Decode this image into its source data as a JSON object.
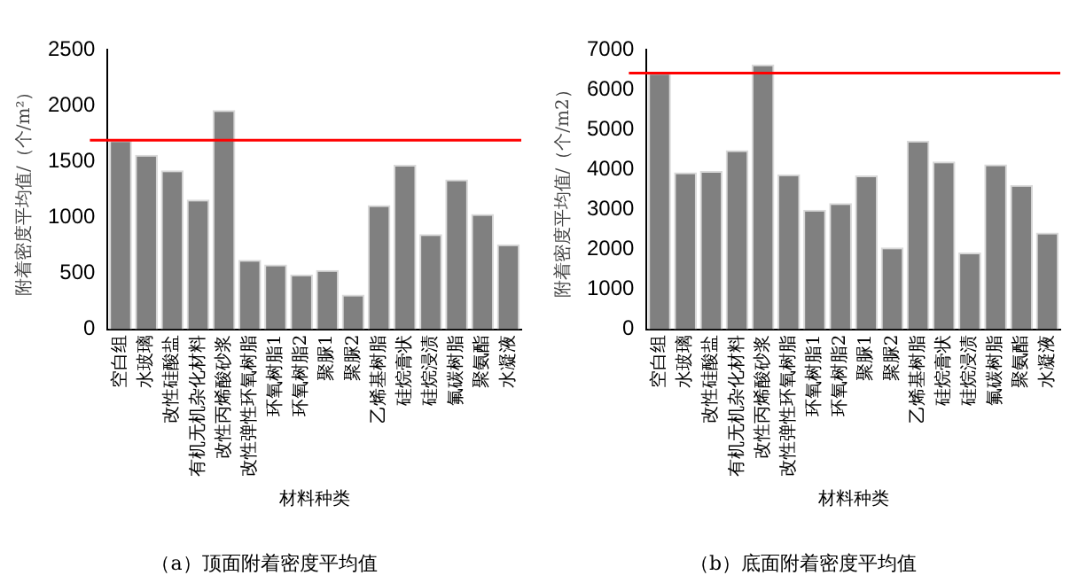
{
  "chart_data": [
    {
      "type": "bar",
      "title": "（a）顶面附着密度平均值",
      "xlabel": "材料种类",
      "ylabel": "附着密度平均值/（个/m²）",
      "categories": [
        "空白组",
        "水玻璃",
        "改性硅酸盐",
        "有机无机杂化材料",
        "改性丙烯酸砂浆",
        "改性弹性环氧树脂",
        "环氧树脂1",
        "环氧树脂2",
        "聚脲1",
        "聚脲2",
        "乙烯基树脂",
        "硅烷膏状",
        "硅烷浸渍",
        "氟碳树脂",
        "聚氨酯",
        "水凝液"
      ],
      "values": [
        1690,
        1560,
        1420,
        1160,
        1960,
        620,
        580,
        490,
        530,
        310,
        1110,
        1470,
        850,
        1340,
        1030,
        760
      ],
      "color": "#808080",
      "ylim": [
        0,
        2500
      ],
      "yticks": [
        0,
        500,
        1000,
        1500,
        2000,
        2500
      ],
      "grid": false,
      "legend": false,
      "ref_lines": [
        {
          "axis": "y",
          "value": 1690,
          "color": "#ff0000"
        }
      ]
    },
    {
      "type": "bar",
      "title": "（b）底面附着密度平均值",
      "xlabel": "材料种类",
      "ylabel": "附着密度平均值/（个/m2）",
      "categories": [
        "空白组",
        "水玻璃",
        "改性硅酸盐",
        "有机无机杂化材料",
        "改性丙烯酸砂浆",
        "改性弹性环氧树脂",
        "环氧树脂1",
        "环氧树脂2",
        "聚脲1",
        "聚脲2",
        "乙烯基树脂",
        "硅烷膏状",
        "硅烷浸渍",
        "氟碳树脂",
        "聚氨酯",
        "水凝液"
      ],
      "values": [
        6420,
        3930,
        3960,
        4480,
        6630,
        3880,
        2990,
        3160,
        3850,
        2050,
        4720,
        4200,
        1920,
        4130,
        3610,
        2420
      ],
      "color": "#808080",
      "ylim": [
        0,
        7000
      ],
      "yticks": [
        0,
        1000,
        2000,
        3000,
        4000,
        5000,
        6000,
        7000
      ],
      "grid": false,
      "legend": false,
      "ref_lines": [
        {
          "axis": "y",
          "value": 6410,
          "color": "#ff0000"
        }
      ]
    }
  ]
}
